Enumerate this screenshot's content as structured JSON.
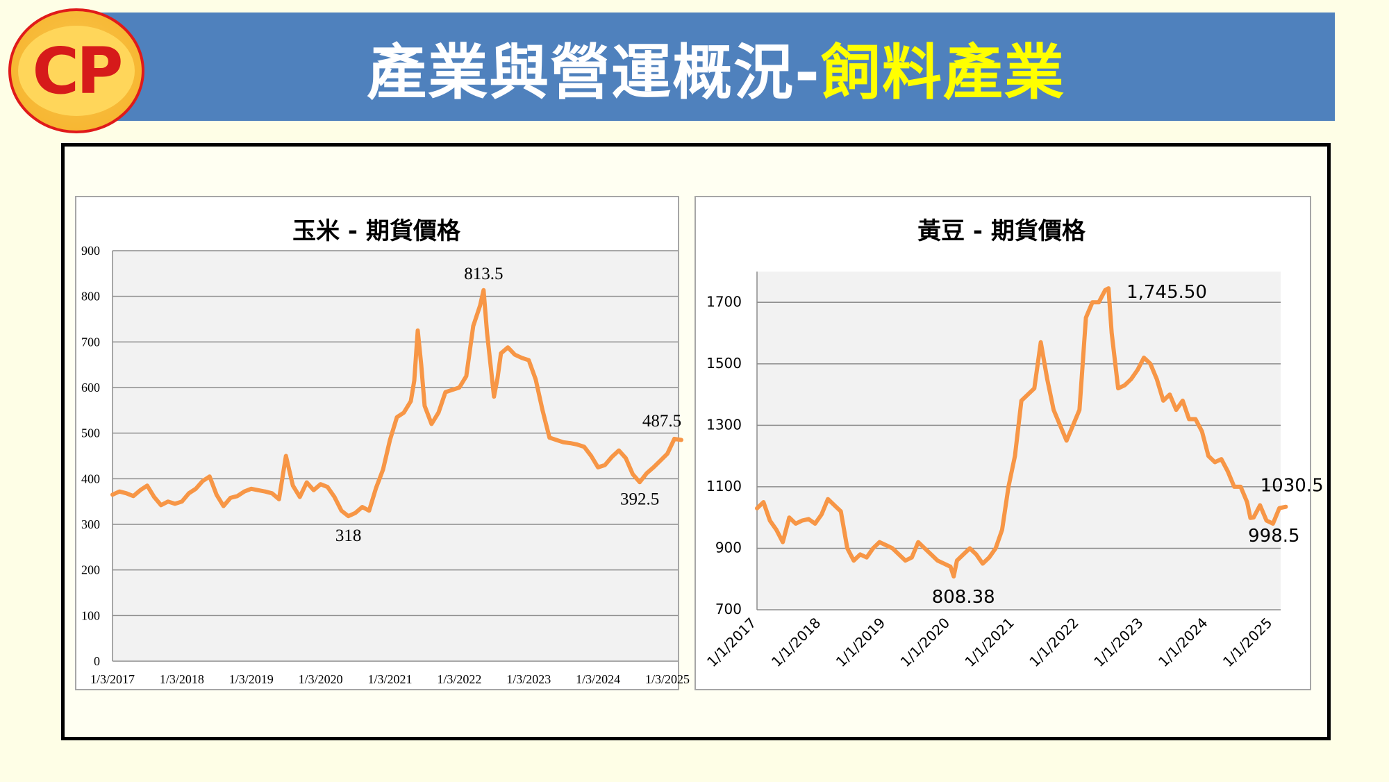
{
  "header": {
    "title_main": "產業與營運概況-",
    "title_highlight": "飼料產業",
    "logo_text": "CP",
    "banner_color": "#4f81bd",
    "highlight_color": "#ffff00"
  },
  "chart_data": [
    {
      "type": "line",
      "title": "玉米 - 期貨價格",
      "xlabel": "",
      "ylabel": "",
      "ylim": [
        0,
        900
      ],
      "yticks": [
        0,
        100,
        200,
        300,
        400,
        500,
        600,
        700,
        800,
        900
      ],
      "xticks": [
        "1/3/2017",
        "1/3/2018",
        "1/3/2019",
        "1/3/2020",
        "1/3/2021",
        "1/3/2022",
        "1/3/2023",
        "1/3/2024",
        "1/3/2025"
      ],
      "grid": true,
      "legend": "none",
      "line_color": "#f79646",
      "series": [
        {
          "x": [
            2017.0,
            2017.1,
            2017.2,
            2017.3,
            2017.4,
            2017.5,
            2017.6,
            2017.7,
            2017.8,
            2017.9,
            2018.0,
            2018.1,
            2018.2,
            2018.3,
            2018.4,
            2018.5,
            2018.6,
            2018.7,
            2018.8,
            2018.9,
            2019.0,
            2019.1,
            2019.2,
            2019.3,
            2019.4,
            2019.5,
            2019.6,
            2019.7,
            2019.8,
            2019.9,
            2020.0,
            2020.1,
            2020.2,
            2020.3,
            2020.4,
            2020.5,
            2020.6,
            2020.7,
            2020.8,
            2020.9,
            2021.0,
            2021.1,
            2021.2,
            2021.3,
            2021.35,
            2021.4,
            2021.45,
            2021.5,
            2021.6,
            2021.7,
            2021.8,
            2021.9,
            2022.0,
            2022.1,
            2022.2,
            2022.3,
            2022.35,
            2022.4,
            2022.5,
            2022.55,
            2022.6,
            2022.7,
            2022.8,
            2022.9,
            2023.0,
            2023.1,
            2023.2,
            2023.3,
            2023.4,
            2023.5,
            2023.6,
            2023.7,
            2023.8,
            2023.9,
            2024.0,
            2024.1,
            2024.2,
            2024.3,
            2024.4,
            2024.5,
            2024.6,
            2024.7,
            2024.8,
            2024.9,
            2025.0,
            2025.1,
            2025.2
          ],
          "values": [
            365,
            372,
            368,
            362,
            375,
            385,
            360,
            342,
            350,
            345,
            350,
            368,
            378,
            395,
            405,
            365,
            340,
            358,
            362,
            372,
            378,
            375,
            372,
            368,
            355,
            450,
            385,
            360,
            392,
            375,
            388,
            382,
            360,
            330,
            318,
            325,
            338,
            330,
            380,
            420,
            485,
            535,
            545,
            570,
            615,
            725,
            650,
            560,
            520,
            545,
            590,
            595,
            600,
            625,
            735,
            780,
            813.5,
            720,
            580,
            620,
            675,
            688,
            672,
            665,
            660,
            618,
            550,
            490,
            485,
            480,
            478,
            475,
            470,
            450,
            425,
            430,
            448,
            462,
            445,
            410,
            392.5,
            412,
            425,
            440,
            455,
            487.5,
            485
          ]
        }
      ],
      "annotations": [
        {
          "text": "813.5",
          "x": 2022.35,
          "y": 813.5
        },
        {
          "text": "318",
          "x": 2020.4,
          "y": 318
        },
        {
          "text": "487.5",
          "x": 2025.1,
          "y": 487.5
        },
        {
          "text": "392.5",
          "x": 2024.6,
          "y": 392.5
        }
      ]
    },
    {
      "type": "line",
      "title": "黃豆 - 期貨價格",
      "xlabel": "",
      "ylabel": "",
      "ylim": [
        700,
        1800
      ],
      "yticks": [
        700,
        900,
        1100,
        1300,
        1500,
        1700
      ],
      "xticks": [
        "1/1/2017",
        "1/1/2018",
        "1/1/2019",
        "1/1/2020",
        "1/1/2021",
        "1/1/2022",
        "1/1/2023",
        "1/1/2024",
        "1/1/2025"
      ],
      "grid": true,
      "legend": "none",
      "line_color": "#f79646",
      "series": [
        {
          "x": [
            2017.0,
            2017.1,
            2017.2,
            2017.3,
            2017.4,
            2017.5,
            2017.6,
            2017.7,
            2017.8,
            2017.9,
            2018.0,
            2018.1,
            2018.2,
            2018.3,
            2018.4,
            2018.5,
            2018.6,
            2018.7,
            2018.8,
            2018.9,
            2019.0,
            2019.1,
            2019.2,
            2019.3,
            2019.4,
            2019.5,
            2019.6,
            2019.7,
            2019.8,
            2019.9,
            2020.0,
            2020.05,
            2020.1,
            2020.2,
            2020.3,
            2020.4,
            2020.5,
            2020.6,
            2020.7,
            2020.8,
            2020.9,
            2021.0,
            2021.1,
            2021.2,
            2021.3,
            2021.4,
            2021.5,
            2021.6,
            2021.7,
            2021.8,
            2021.9,
            2022.0,
            2022.1,
            2022.2,
            2022.3,
            2022.4,
            2022.45,
            2022.5,
            2022.6,
            2022.7,
            2022.8,
            2022.9,
            2023.0,
            2023.1,
            2023.2,
            2023.3,
            2023.4,
            2023.5,
            2023.6,
            2023.7,
            2023.8,
            2023.9,
            2024.0,
            2024.1,
            2024.2,
            2024.3,
            2024.4,
            2024.5,
            2024.6,
            2024.65,
            2024.7,
            2024.8,
            2024.9,
            2025.0,
            2025.1,
            2025.2
          ],
          "values": [
            1030,
            1050,
            990,
            960,
            920,
            1000,
            980,
            990,
            995,
            980,
            1010,
            1060,
            1040,
            1020,
            900,
            860,
            880,
            870,
            900,
            920,
            910,
            900,
            880,
            860,
            870,
            920,
            900,
            880,
            860,
            850,
            840,
            808.38,
            860,
            880,
            900,
            880,
            850,
            870,
            900,
            960,
            1100,
            1200,
            1380,
            1400,
            1420,
            1570,
            1450,
            1350,
            1300,
            1250,
            1300,
            1350,
            1650,
            1700,
            1700,
            1740,
            1745.5,
            1600,
            1420,
            1430,
            1450,
            1480,
            1520,
            1500,
            1450,
            1380,
            1400,
            1350,
            1380,
            1320,
            1320,
            1280,
            1200,
            1180,
            1190,
            1150,
            1100,
            1100,
            1050,
            998.5,
            1000,
            1040,
            990,
            980,
            1030.5,
            1035
          ]
        }
      ],
      "annotations": [
        {
          "text": "1,745.50",
          "x": 2022.45,
          "y": 1745.5
        },
        {
          "text": "808.38",
          "x": 2020.05,
          "y": 808.38
        },
        {
          "text": "1030.5",
          "x": 2025.1,
          "y": 1030.5
        },
        {
          "text": "998.5",
          "x": 2024.65,
          "y": 998.5
        }
      ]
    }
  ]
}
